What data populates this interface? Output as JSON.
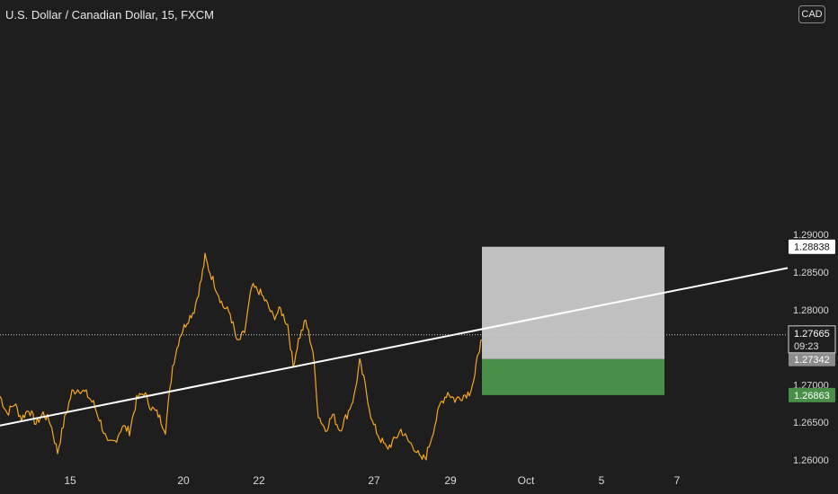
{
  "header": {
    "title": "U.S. Dollar / Canadian Dollar, 15, FXCM",
    "currency_button": "CAD"
  },
  "chart_data": {
    "type": "line",
    "title": "U.S. Dollar / Canadian Dollar, 15, FXCM",
    "xlabel": "",
    "ylabel": "",
    "x_ticks": [
      "15",
      "20",
      "22",
      "27",
      "29",
      "Oct",
      "5",
      "7"
    ],
    "y_ticks": [
      "1.29000",
      "1.28500",
      "1.28000",
      "1.27000",
      "1.26500",
      "1.26000"
    ],
    "ylim": [
      1.26,
      1.2925
    ],
    "grid": false,
    "series": [
      {
        "color": "#f5a623",
        "points": [
          [
            0,
            1.2685
          ],
          [
            8,
            1.2662
          ],
          [
            16,
            1.2675
          ],
          [
            24,
            1.2655
          ],
          [
            32,
            1.2668
          ],
          [
            40,
            1.2648
          ],
          [
            48,
            1.2662
          ],
          [
            56,
            1.265
          ],
          [
            64,
            1.261
          ],
          [
            72,
            1.2655
          ],
          [
            80,
            1.269
          ],
          [
            88,
            1.2695
          ],
          [
            96,
            1.2688
          ],
          [
            104,
            1.2675
          ],
          [
            112,
            1.265
          ],
          [
            120,
            1.262
          ],
          [
            128,
            1.2625
          ],
          [
            136,
            1.2645
          ],
          [
            144,
            1.2638
          ],
          [
            152,
            1.268
          ],
          [
            160,
            1.269
          ],
          [
            168,
            1.267
          ],
          [
            176,
            1.266
          ],
          [
            184,
            1.264
          ],
          [
            192,
            1.2725
          ],
          [
            200,
            1.2765
          ],
          [
            208,
            1.2785
          ],
          [
            216,
            1.28
          ],
          [
            224,
            1.284
          ],
          [
            228,
            1.287
          ],
          [
            232,
            1.2855
          ],
          [
            240,
            1.283
          ],
          [
            248,
            1.2805
          ],
          [
            256,
            1.2795
          ],
          [
            264,
            1.2755
          ],
          [
            272,
            1.277
          ],
          [
            280,
            1.283
          ],
          [
            288,
            1.2825
          ],
          [
            296,
            1.281
          ],
          [
            304,
            1.279
          ],
          [
            312,
            1.28
          ],
          [
            320,
            1.278
          ],
          [
            326,
            1.2725
          ],
          [
            332,
            1.276
          ],
          [
            340,
            1.2785
          ],
          [
            348,
            1.2745
          ],
          [
            354,
            1.266
          ],
          [
            362,
            1.264
          ],
          [
            370,
            1.266
          ],
          [
            378,
            1.264
          ],
          [
            386,
            1.266
          ],
          [
            394,
            1.2685
          ],
          [
            400,
            1.273
          ],
          [
            406,
            1.27
          ],
          [
            414,
            1.265
          ],
          [
            422,
            1.263
          ],
          [
            430,
            1.2615
          ],
          [
            438,
            1.2625
          ],
          [
            446,
            1.264
          ],
          [
            454,
            1.2625
          ],
          [
            462,
            1.2615
          ],
          [
            468,
            1.26
          ],
          [
            474,
            1.2605
          ],
          [
            482,
            1.264
          ],
          [
            490,
            1.2675
          ],
          [
            498,
            1.269
          ],
          [
            506,
            1.268
          ],
          [
            514,
            1.2685
          ],
          [
            522,
            1.269
          ],
          [
            528,
            1.271
          ],
          [
            532,
            1.2745
          ],
          [
            536,
            1.276
          ]
        ]
      }
    ],
    "current_price": 1.27665,
    "countdown": "09:23",
    "trendline": [
      [
        0,
        1.26458
      ],
      [
        876,
        1.28555
      ]
    ],
    "position": {
      "x_range": [
        536,
        739
      ],
      "target": 1.28838,
      "entry": 1.27342,
      "stop": 1.26863,
      "profit_color": "#c0c0c0",
      "loss_color": "#4a8f47"
    },
    "price_labels": [
      "1.28838",
      "1.27665",
      "1.27342",
      "1.26863"
    ]
  }
}
